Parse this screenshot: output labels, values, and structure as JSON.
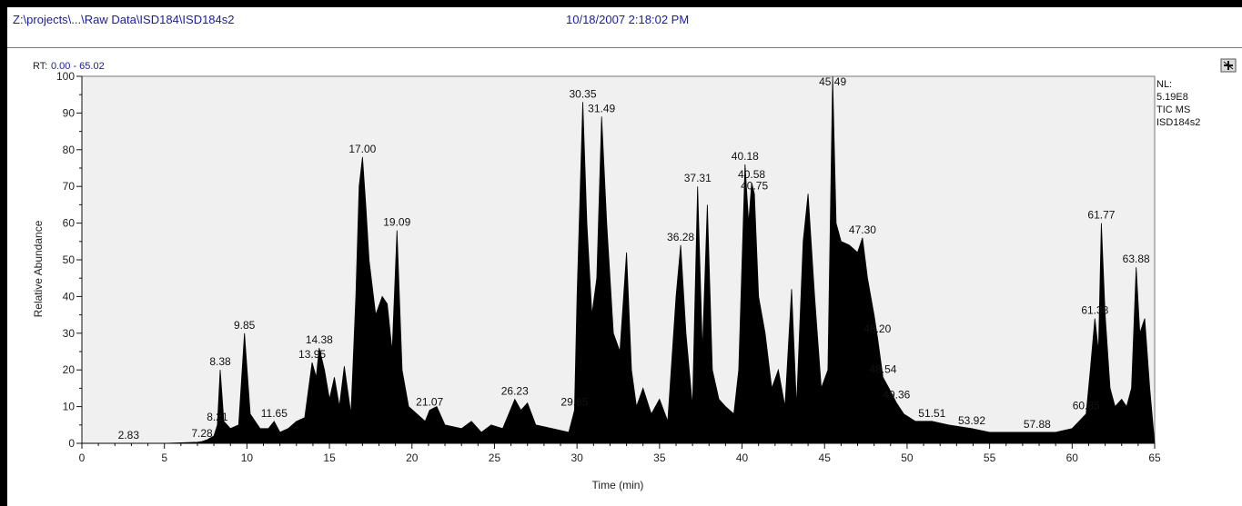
{
  "window": {
    "file_path": "Z:\\projects\\...\\Raw Data\\ISD184\\ISD184s2",
    "timestamp": "10/18/2007 2:18:02 PM"
  },
  "plot_header": {
    "rt_label": "RT:",
    "rt_range": "0.00 - 65.02"
  },
  "trace_info": {
    "nl_label": "NL:",
    "nl_value": "5.19E8",
    "tic_label": "TIC  MS",
    "sample": "ISD184s2"
  },
  "colors": {
    "trace": "#000000",
    "plot_bg": "#f0f0f0",
    "link_text": "#1a1aa8"
  },
  "chart_data": {
    "type": "area",
    "title": "",
    "xlabel": "Time (min)",
    "ylabel": "Relative Abundance",
    "xlim": [
      0,
      65
    ],
    "ylim": [
      0,
      100
    ],
    "x_ticks": [
      0,
      5,
      10,
      15,
      20,
      25,
      30,
      35,
      40,
      45,
      50,
      55,
      60,
      65
    ],
    "y_ticks": [
      0,
      10,
      20,
      30,
      40,
      50,
      60,
      70,
      80,
      90,
      100
    ],
    "grid": false,
    "legend": "none",
    "peak_labels": [
      {
        "x": 2.83,
        "y": 0,
        "label": "2.83"
      },
      {
        "x": 7.28,
        "y": 0.5,
        "label": "7.28"
      },
      {
        "x": 8.21,
        "y": 5,
        "label": "8.21"
      },
      {
        "x": 8.38,
        "y": 20,
        "label": "8.38"
      },
      {
        "x": 9.85,
        "y": 30,
        "label": "9.85"
      },
      {
        "x": 11.65,
        "y": 6,
        "label": "11.65"
      },
      {
        "x": 13.95,
        "y": 22,
        "label": "13.95"
      },
      {
        "x": 14.38,
        "y": 26,
        "label": "14.38"
      },
      {
        "x": 17.0,
        "y": 78,
        "label": "17.00"
      },
      {
        "x": 19.09,
        "y": 58,
        "label": "19.09"
      },
      {
        "x": 21.07,
        "y": 9,
        "label": "21.07"
      },
      {
        "x": 26.23,
        "y": 12,
        "label": "26.23"
      },
      {
        "x": 29.85,
        "y": 9,
        "label": "29.85"
      },
      {
        "x": 30.35,
        "y": 93,
        "label": "30.35"
      },
      {
        "x": 31.49,
        "y": 89,
        "label": "31.49"
      },
      {
        "x": 36.28,
        "y": 54,
        "label": "36.28"
      },
      {
        "x": 37.31,
        "y": 70,
        "label": "37.31"
      },
      {
        "x": 40.18,
        "y": 76,
        "label": "40.18"
      },
      {
        "x": 40.58,
        "y": 71,
        "label": "40.58"
      },
      {
        "x": 40.75,
        "y": 68,
        "label": "40.75"
      },
      {
        "x": 45.49,
        "y": 100,
        "label": "45.49"
      },
      {
        "x": 47.3,
        "y": 56,
        "label": "47.30"
      },
      {
        "x": 48.2,
        "y": 29,
        "label": "48.20"
      },
      {
        "x": 48.54,
        "y": 18,
        "label": "48.54"
      },
      {
        "x": 49.36,
        "y": 11,
        "label": "49.36"
      },
      {
        "x": 51.51,
        "y": 6,
        "label": "51.51"
      },
      {
        "x": 53.92,
        "y": 4,
        "label": "53.92"
      },
      {
        "x": 57.88,
        "y": 3,
        "label": "57.88"
      },
      {
        "x": 60.85,
        "y": 8,
        "label": "60.85"
      },
      {
        "x": 61.38,
        "y": 34,
        "label": "61.38"
      },
      {
        "x": 61.77,
        "y": 60,
        "label": "61.77"
      },
      {
        "x": 63.88,
        "y": 48,
        "label": "63.88"
      }
    ],
    "series": [
      {
        "x": [
          0,
          5,
          7.0,
          7.28,
          7.6,
          8.0,
          8.21,
          8.38,
          8.6,
          9.0,
          9.5,
          9.85,
          10.2,
          10.8,
          11.3,
          11.65,
          12.0,
          12.5,
          13.0,
          13.5,
          13.95,
          14.2,
          14.38,
          14.7,
          15.0,
          15.3,
          15.6,
          15.9,
          16.3,
          16.6,
          16.8,
          17.0,
          17.2,
          17.4,
          17.8,
          18.2,
          18.5,
          18.8,
          19.09,
          19.4,
          19.8,
          20.3,
          20.8,
          21.07,
          21.5,
          22.0,
          23.0,
          23.6,
          24.2,
          24.8,
          25.5,
          26.23,
          26.6,
          27.0,
          27.5,
          28.5,
          29.5,
          29.85,
          30.0,
          30.35,
          30.6,
          30.9,
          31.2,
          31.49,
          31.8,
          32.2,
          32.6,
          33.0,
          33.3,
          33.6,
          34.0,
          34.5,
          35.0,
          35.5,
          36.0,
          36.28,
          36.6,
          37.0,
          37.31,
          37.6,
          37.9,
          38.2,
          38.6,
          39.0,
          39.5,
          39.8,
          40.18,
          40.4,
          40.58,
          40.75,
          41.0,
          41.4,
          41.8,
          42.2,
          42.6,
          43.0,
          43.3,
          43.7,
          44.0,
          44.4,
          44.8,
          45.2,
          45.49,
          45.7,
          46.0,
          46.5,
          47.0,
          47.3,
          47.6,
          48.0,
          48.2,
          48.54,
          48.9,
          49.36,
          49.8,
          50.5,
          51.51,
          52.5,
          53.92,
          55.0,
          56.0,
          57.0,
          57.88,
          59.0,
          60.0,
          60.85,
          61.1,
          61.38,
          61.6,
          61.77,
          62.0,
          62.3,
          62.6,
          63.0,
          63.3,
          63.6,
          63.88,
          64.1,
          64.4,
          64.7,
          65.0
        ],
        "values": [
          0,
          0,
          0.3,
          0.5,
          1,
          2,
          5,
          20,
          6,
          4,
          5,
          30,
          8,
          4,
          4,
          6,
          3,
          4,
          6,
          7,
          22,
          18,
          26,
          20,
          12,
          18,
          10,
          21,
          8,
          40,
          70,
          78,
          65,
          50,
          35,
          40,
          38,
          25,
          58,
          20,
          10,
          8,
          6,
          9,
          10,
          5,
          4,
          6,
          3,
          5,
          4,
          12,
          9,
          11,
          5,
          4,
          3,
          9,
          40,
          93,
          60,
          35,
          45,
          89,
          60,
          30,
          25,
          52,
          20,
          10,
          15,
          8,
          12,
          6,
          40,
          54,
          30,
          10,
          70,
          25,
          65,
          20,
          12,
          10,
          8,
          20,
          76,
          60,
          71,
          68,
          40,
          30,
          15,
          20,
          10,
          42,
          10,
          55,
          68,
          40,
          15,
          20,
          100,
          60,
          55,
          54,
          52,
          56,
          45,
          35,
          29,
          18,
          15,
          11,
          8,
          6,
          6,
          5,
          4,
          3,
          3,
          3,
          3,
          3,
          4,
          8,
          20,
          34,
          25,
          60,
          35,
          15,
          10,
          12,
          10,
          15,
          48,
          30,
          34,
          15,
          0
        ]
      }
    ]
  }
}
